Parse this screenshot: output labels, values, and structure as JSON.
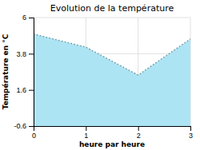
{
  "chart_data": {
    "type": "area",
    "title": "Evolution de la température",
    "xlabel": "heure par heure",
    "ylabel": "Température en °C",
    "x": [
      0,
      1,
      2,
      3
    ],
    "values": [
      5.0,
      4.2,
      2.5,
      4.7
    ],
    "xlim": [
      0,
      3
    ],
    "ylim": [
      -0.6,
      6.0
    ],
    "xticks": [
      0,
      1,
      2,
      3
    ],
    "yticks": [
      -0.6,
      1.6,
      3.8,
      6.0
    ],
    "grid": true,
    "color": "#ade4f4",
    "line_style": "dotted"
  }
}
